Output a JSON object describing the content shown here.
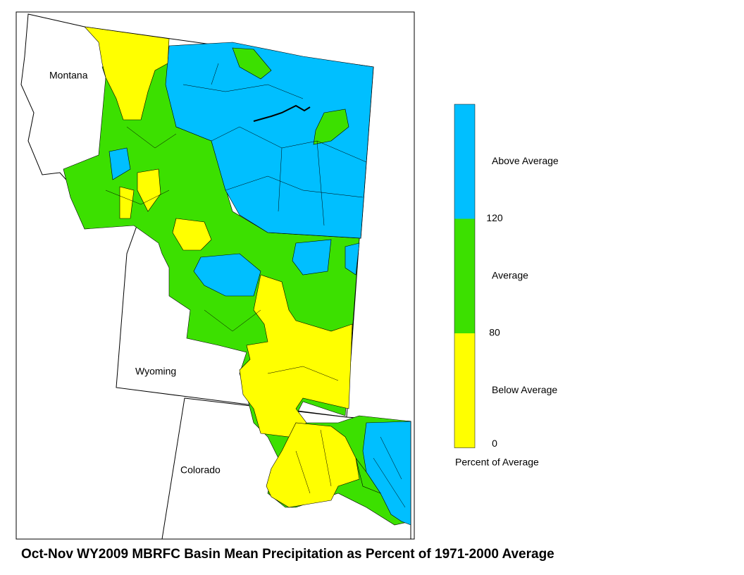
{
  "title": "Oct-Nov WY2009 MBRFC Basin Mean Precipitation as Percent of 1971-2000 Average",
  "state_labels": [
    "Montana",
    "Wyoming",
    "Colorado"
  ],
  "legend": {
    "title": "Percent of Average",
    "classes": [
      {
        "label": "Above Average",
        "color": "#00bfff"
      },
      {
        "label": "Average",
        "color": "#3ce000"
      },
      {
        "label": "Below Average",
        "color": "#ffff00"
      }
    ],
    "breaks": [
      120,
      80,
      0
    ]
  }
}
